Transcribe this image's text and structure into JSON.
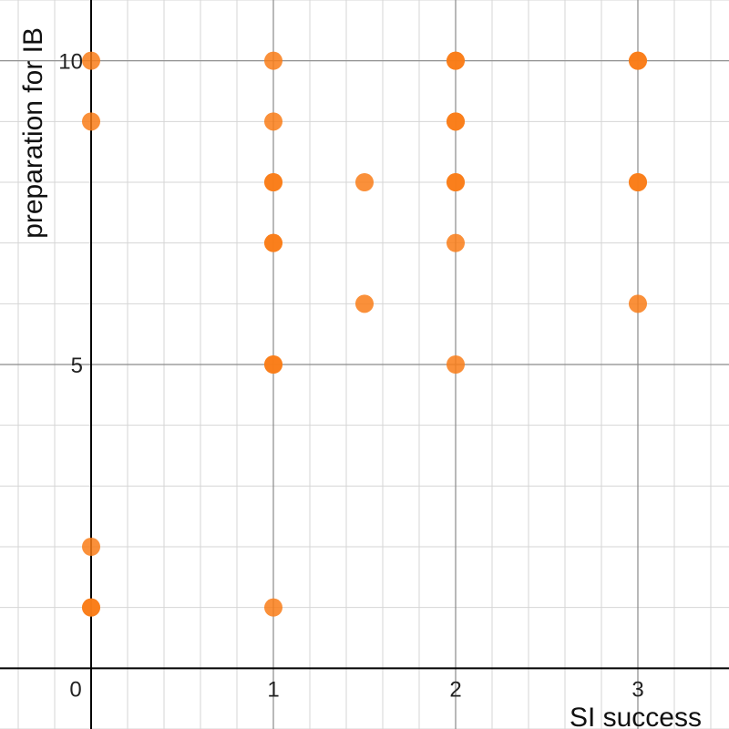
{
  "chart_data": {
    "type": "scatter",
    "xlabel": "SI success",
    "ylabel": "preparation for IB",
    "xlim": [
      -0.5,
      3.5
    ],
    "ylim": [
      -1,
      11
    ],
    "x_ticks": [
      0,
      1,
      2,
      3
    ],
    "y_ticks": [
      5,
      10
    ],
    "x_minor_step": 0.2,
    "y_minor_step": 1,
    "grid": true,
    "legend": "none",
    "series": [
      {
        "color": "#f97d18",
        "points": [
          [
            0,
            10
          ],
          [
            0,
            9
          ],
          [
            0,
            2
          ],
          [
            0,
            1
          ],
          [
            0,
            1
          ],
          [
            1,
            10
          ],
          [
            1,
            9
          ],
          [
            1,
            8
          ],
          [
            1,
            8
          ],
          [
            1,
            7
          ],
          [
            1,
            7
          ],
          [
            1,
            5
          ],
          [
            1,
            5
          ],
          [
            1,
            1
          ],
          [
            1.5,
            8
          ],
          [
            1.5,
            6
          ],
          [
            2,
            10
          ],
          [
            2,
            10
          ],
          [
            2,
            9
          ],
          [
            2,
            9
          ],
          [
            2,
            8
          ],
          [
            2,
            8
          ],
          [
            2,
            7
          ],
          [
            2,
            5
          ],
          [
            3,
            10
          ],
          [
            3,
            10
          ],
          [
            3,
            8
          ],
          [
            3,
            8
          ],
          [
            3,
            6
          ]
        ]
      }
    ]
  }
}
